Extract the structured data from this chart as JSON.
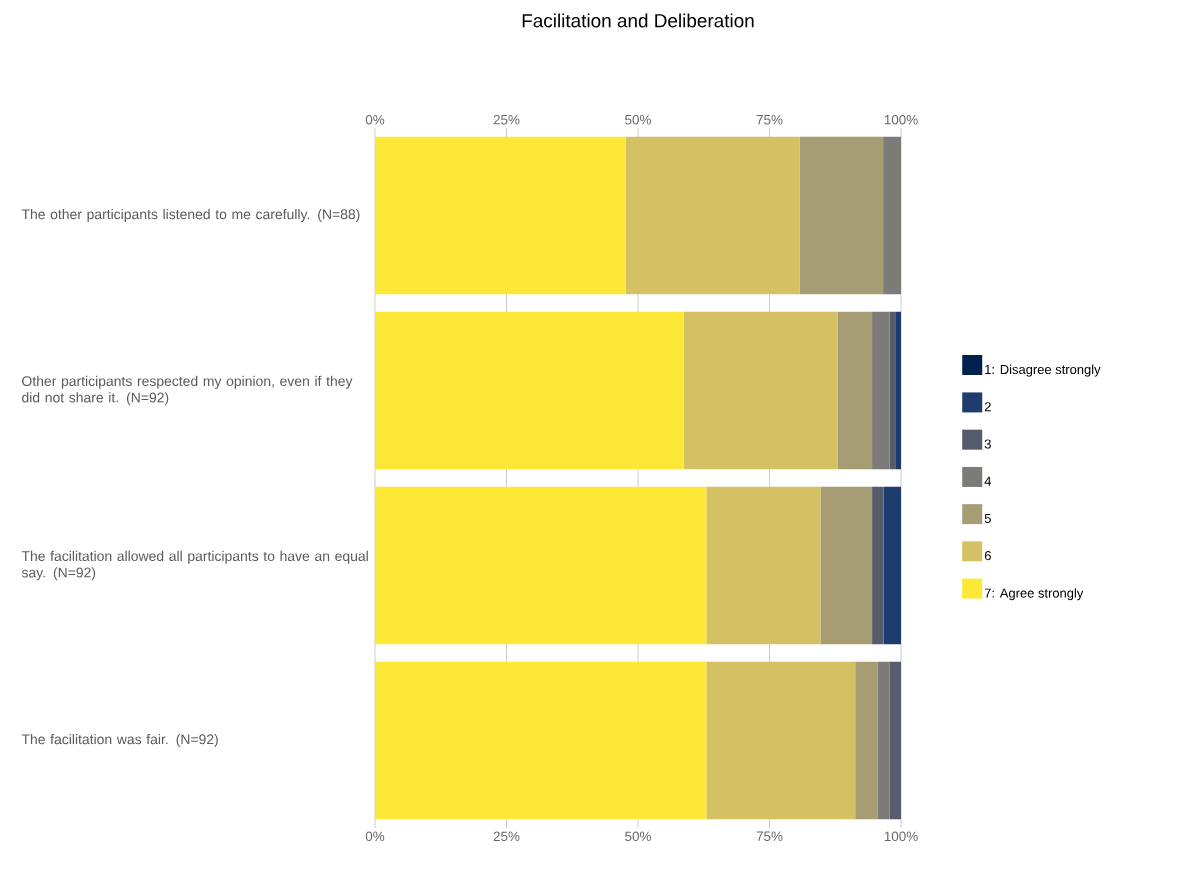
{
  "chart_data": {
    "type": "bar",
    "orientation": "horizontal",
    "stacked": true,
    "title": "Facilitation and Deliberation",
    "categories": [
      "The other participants listened to me carefully. (N=88)",
      "Other participants respected my opinion, even if they did not share it. (N=92)",
      "The facilitation allowed all participants to have an equal say. (N=92)",
      "The facilitation was fair. (N=92)"
    ],
    "series": [
      {
        "name": "7: Agree strongly",
        "color": "#fde737",
        "values": [
          47.7,
          58.7,
          63.0,
          63.0
        ]
      },
      {
        "name": "6",
        "color": "#d3c164",
        "values": [
          33.0,
          29.3,
          21.7,
          28.3
        ]
      },
      {
        "name": "5",
        "color": "#a69d75",
        "values": [
          15.9,
          6.5,
          9.8,
          4.3
        ]
      },
      {
        "name": "4",
        "color": "#7c7b78",
        "values": [
          3.4,
          3.3,
          0,
          2.2
        ]
      },
      {
        "name": "3",
        "color": "#575c6d",
        "values": [
          0,
          1.1,
          2.2,
          2.2
        ]
      },
      {
        "name": "2",
        "color": "#1f3c6e",
        "values": [
          0,
          1.1,
          3.3,
          0
        ]
      },
      {
        "name": "1: Disagree strongly",
        "color": "#00204d",
        "values": [
          0,
          0,
          0,
          0
        ]
      }
    ],
    "xlim": [
      0,
      100
    ],
    "xticks": [
      {
        "value": 0,
        "label": "0%"
      },
      {
        "value": 25,
        "label": "25%"
      },
      {
        "value": 50,
        "label": "50%"
      },
      {
        "value": 75,
        "label": "75%"
      },
      {
        "value": 100,
        "label": "100%"
      }
    ],
    "x2lim": [
      0,
      100
    ],
    "x2ticks": [
      {
        "value": 0,
        "label": "0%"
      },
      {
        "value": 25,
        "label": "25%"
      },
      {
        "value": 50,
        "label": "50%"
      },
      {
        "value": 75,
        "label": "75%"
      },
      {
        "value": 100,
        "label": "100%"
      }
    ],
    "grid": "x",
    "legend": "right"
  }
}
